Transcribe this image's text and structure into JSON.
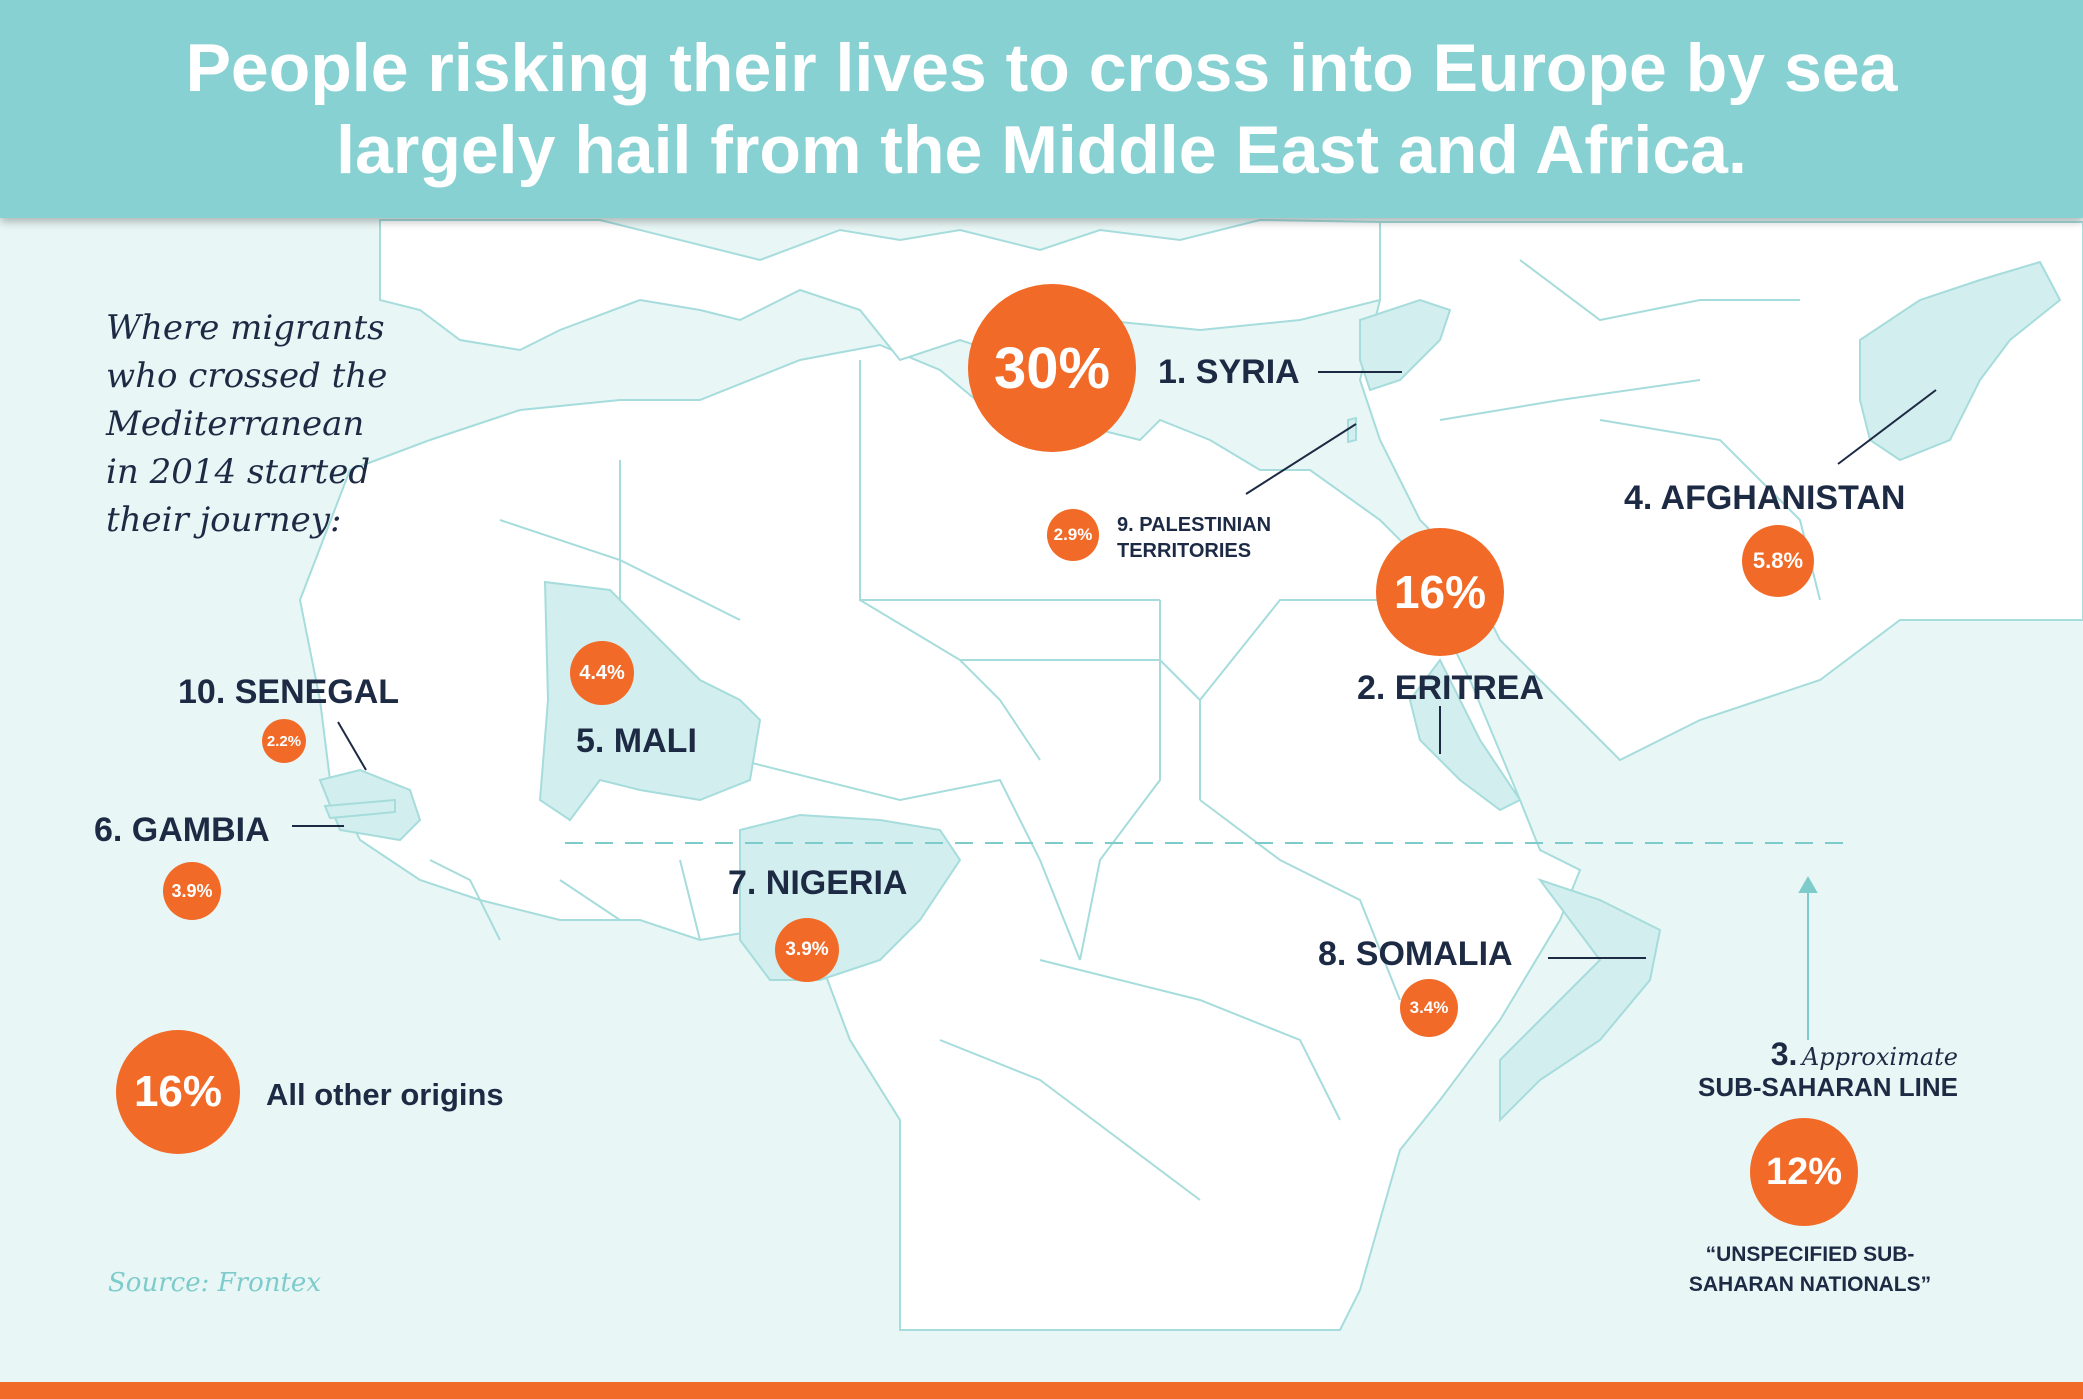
{
  "title": {
    "line1": "People risking their lives to cross into Europe by sea",
    "line2": "largely hail from the Middle East and Africa."
  },
  "intro_lines": [
    "Where migrants",
    "who crossed the",
    "Mediterranean",
    "in 2014 started",
    "their journey:"
  ],
  "origins": [
    {
      "rank_label": "1. SYRIA",
      "percent": "30%"
    },
    {
      "rank_label": "2. ERITREA",
      "percent": "16%"
    },
    {
      "rank_prefix": "3.",
      "note": "Approximate",
      "line_label": "SUB-SAHARAN LINE",
      "percent": "12%",
      "caption_line1": "“UNSPECIFIED SUB-",
      "caption_line2": "SAHARAN NATIONALS”"
    },
    {
      "rank_label": "4. AFGHANISTAN",
      "percent": "5.8%"
    },
    {
      "rank_label": "5. MALI",
      "percent": "4.4%"
    },
    {
      "rank_label": "6. GAMBIA",
      "percent": "3.9%"
    },
    {
      "rank_label": "7. NIGERIA",
      "percent": "3.9%"
    },
    {
      "rank_label": "8. SOMALIA",
      "percent": "3.4%"
    },
    {
      "rank_label_line1": "9. PALESTINIAN",
      "rank_label_line2": "TERRITORIES",
      "percent": "2.9%"
    },
    {
      "rank_label": "10. SENEGAL",
      "percent": "2.2%"
    }
  ],
  "other": {
    "percent": "16%",
    "label": "All other origins"
  },
  "source": "Source: Frontex",
  "colors": {
    "header": "#88d1d3",
    "sea": "#e8f6f6",
    "land": "#ffffff",
    "highlight": "#d3eeee",
    "border": "#a6dcdc",
    "bubble": "#f26a27",
    "text": "#1d2a44",
    "footer": "#f26a27"
  }
}
